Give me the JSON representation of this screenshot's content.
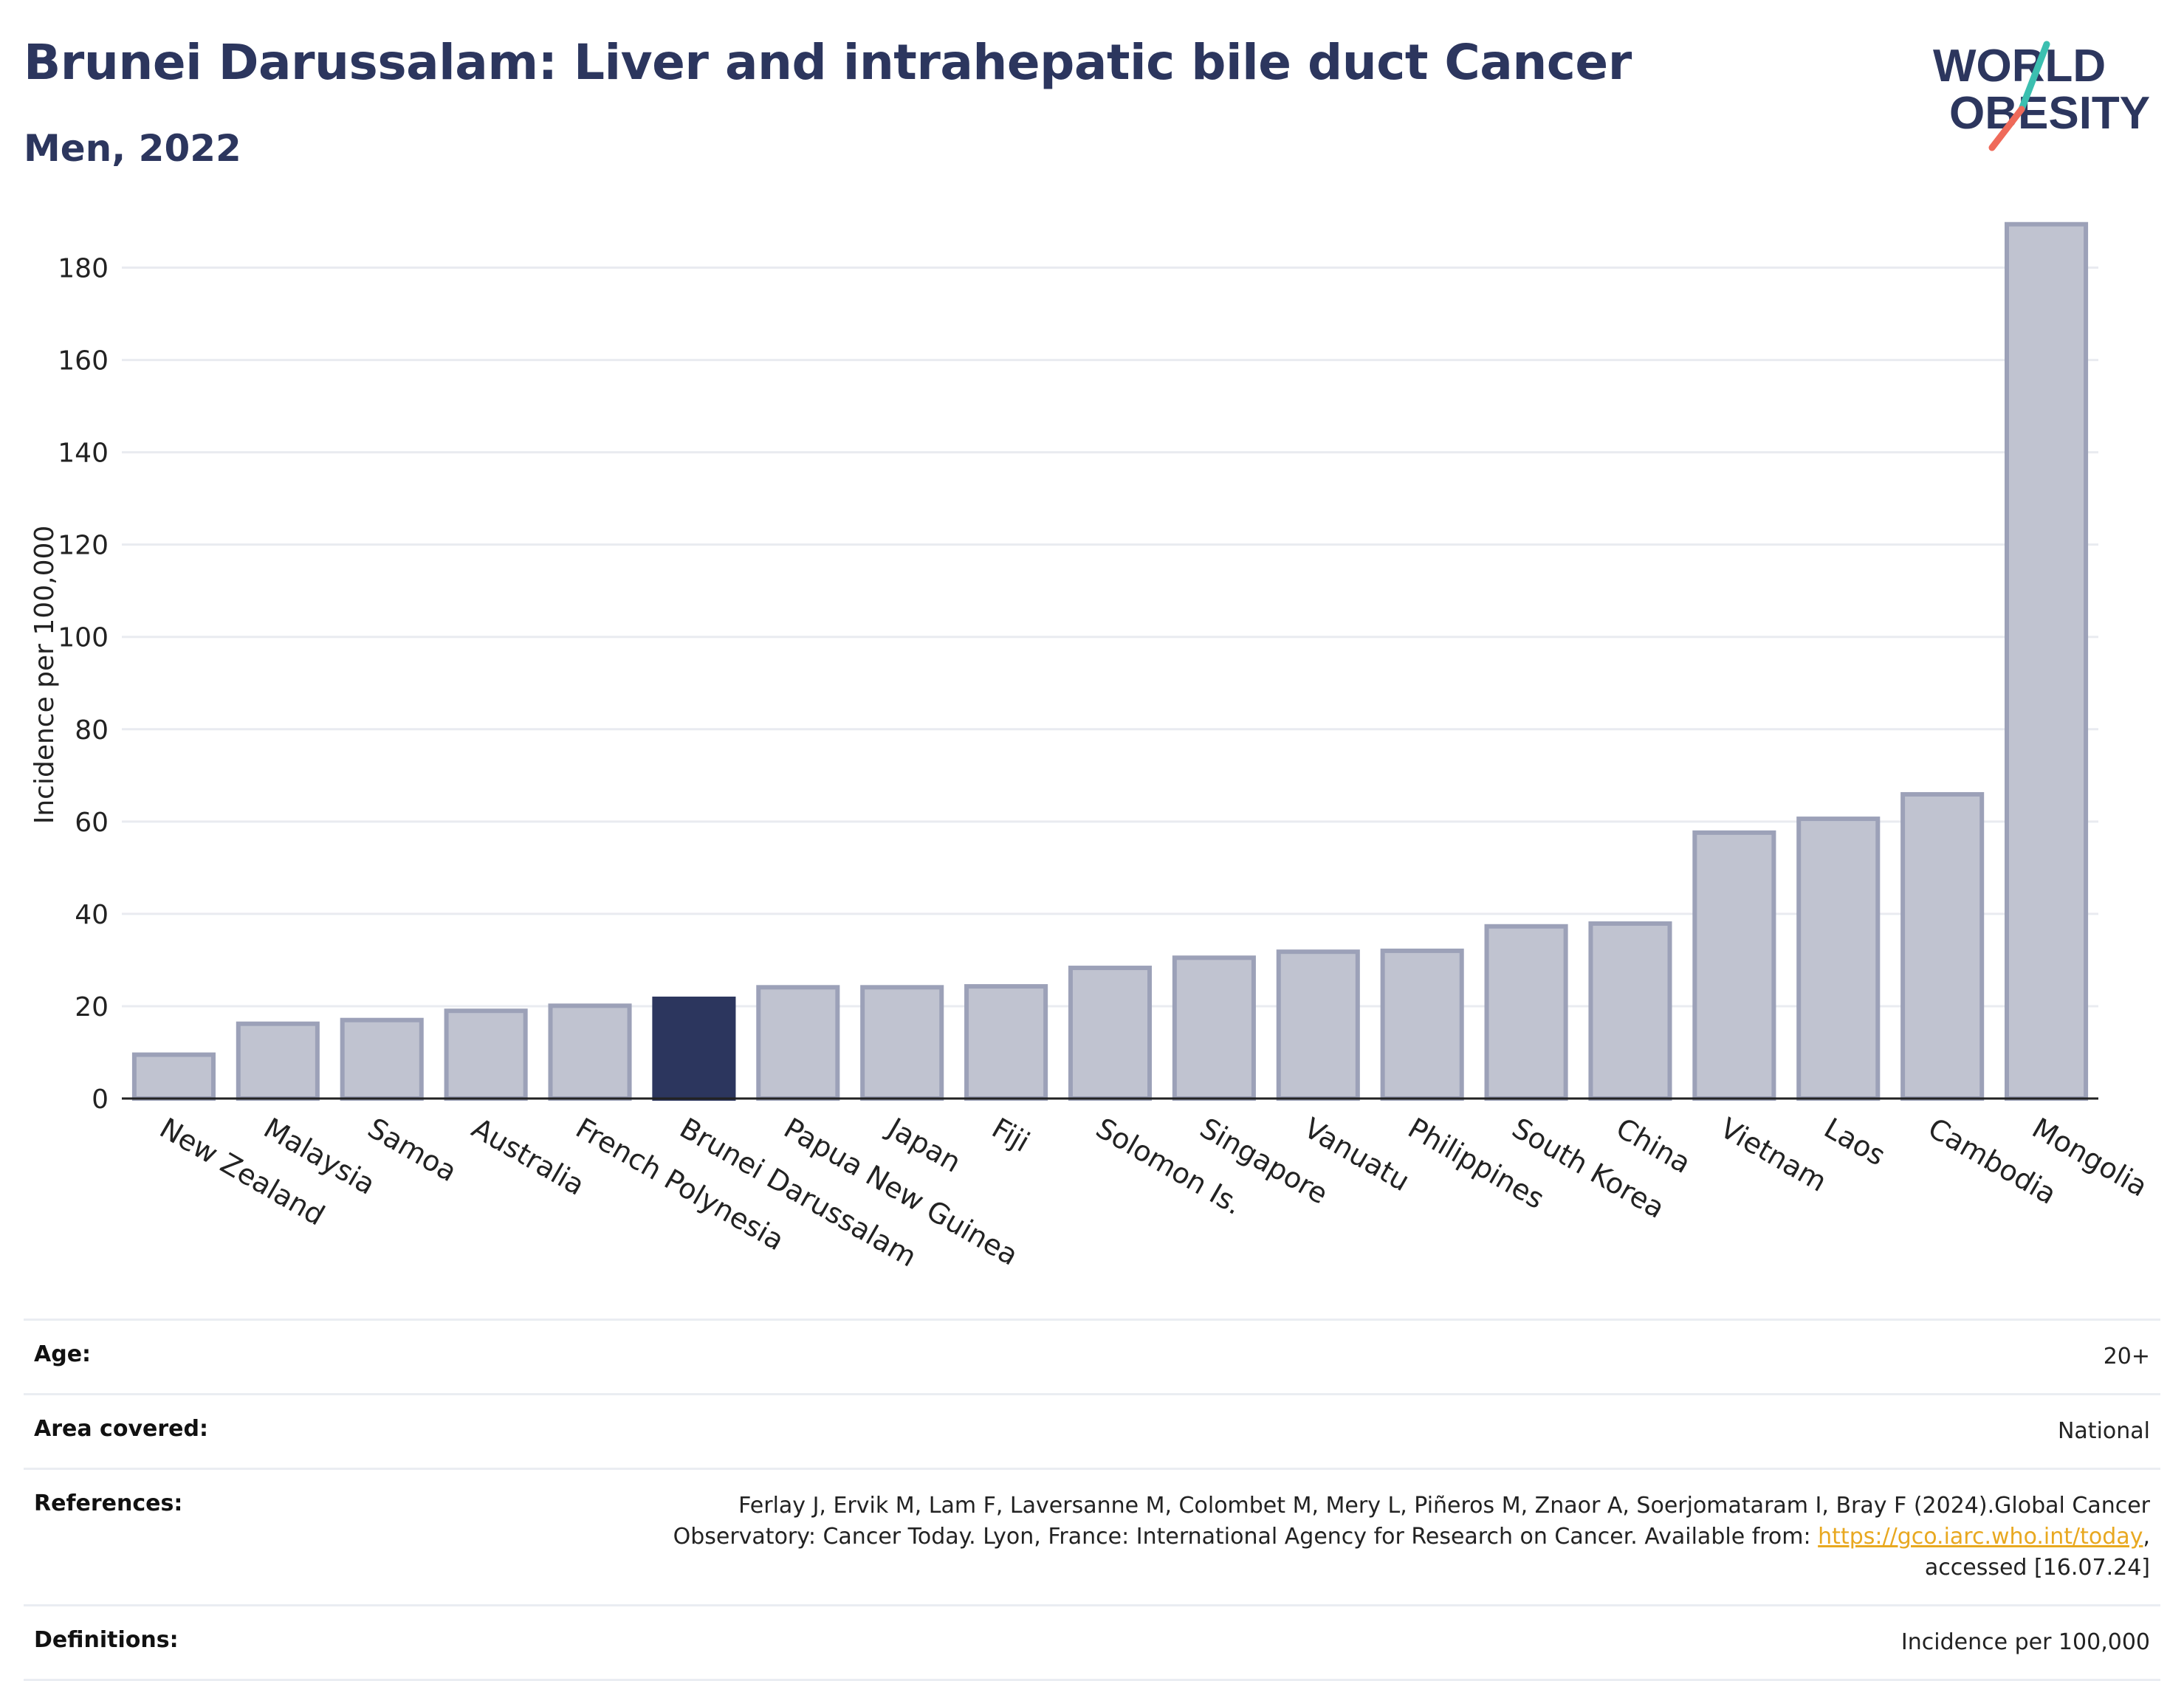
{
  "header": {
    "title": "Brunei Darussalam: Liver and intrahepatic bile duct Cancer",
    "subtitle": "Men, 2022"
  },
  "logo": {
    "line1": "WORLD",
    "line2": "OBESITY",
    "colors": {
      "text": "#2c365e",
      "slash_top": "#3bbfb0",
      "slash_bottom": "#ef6a5a"
    }
  },
  "chart_data": {
    "type": "bar",
    "title": "",
    "xlabel": "",
    "ylabel": "Incidence per 100,000",
    "ylim": [
      0,
      190
    ],
    "yticks": [
      0,
      20,
      40,
      60,
      80,
      100,
      120,
      140,
      160,
      180
    ],
    "grid": true,
    "categories": [
      "New Zealand",
      "Malaysia",
      "Samoa",
      "Australia",
      "French Polynesia",
      "Brunei Darussalam",
      "Papua New Guinea",
      "Japan",
      "Fiji",
      "Solomon Is.",
      "Singapore",
      "Vanuatu",
      "Philippines",
      "South Korea",
      "China",
      "Vietnam",
      "Laos",
      "Cambodia",
      "Mongolia"
    ],
    "values": [
      9.5,
      16.2,
      17,
      19,
      20.1,
      21.6,
      24.1,
      24.1,
      24.3,
      28.3,
      30.5,
      31.8,
      32,
      37.3,
      37.9,
      57.6,
      60.6,
      65.9,
      189.4
    ],
    "highlight": "Brunei Darussalam",
    "colors": {
      "bar": "#c0c3d0",
      "bar_edge": "#9ca1b8",
      "highlight": "#2c365e"
    }
  },
  "meta": {
    "age": {
      "label": "Age:",
      "value": "20+"
    },
    "area": {
      "label": "Area covered:",
      "value": "National"
    },
    "references": {
      "label": "References:",
      "value_before": "Ferlay J, Ervik M, Lam F, Laversanne M, Colombet M, Mery L, Piñeros M, Znaor A, Soerjomataram I, Bray F (2024).Global Cancer Observatory: Cancer Today. Lyon, France: International Agency for Research on Cancer. Available from: ",
      "link": "https://gco.iarc.who.int/today",
      "value_after": ", accessed [16.07.24]"
    },
    "definitions": {
      "label": "Definitions:",
      "value": "Incidence per 100,000"
    }
  }
}
